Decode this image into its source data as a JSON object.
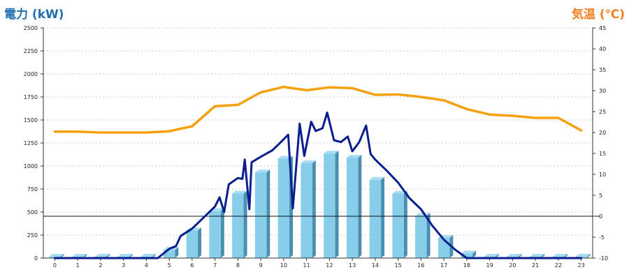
{
  "chart_data": {
    "type": "bar",
    "left_axis_title": "電力 (kW)",
    "right_axis_title": "気温 (℃)",
    "categories": [
      "0",
      "1",
      "2",
      "3",
      "4",
      "5",
      "6",
      "7",
      "8",
      "9",
      "10",
      "11",
      "12",
      "13",
      "14",
      "15",
      "16",
      "17",
      "18",
      "19",
      "20",
      "21",
      "22",
      "23"
    ],
    "ylim_left": [
      0,
      2500
    ],
    "yticks_left": [
      "0",
      "250",
      "500",
      "750",
      "1000",
      "1250",
      "1500",
      "1750",
      "2000",
      "2250",
      "2500"
    ],
    "ylim_right": [
      -10,
      45
    ],
    "yticks_right": [
      "-10",
      "-5",
      "0",
      "5",
      "10",
      "15",
      "20",
      "25",
      "30",
      "35",
      "40",
      "45"
    ],
    "grid": true,
    "bars": {
      "axis": "left",
      "values": [
        15,
        15,
        15,
        15,
        15,
        90,
        300,
        510,
        700,
        930,
        1080,
        1030,
        1135,
        1090,
        850,
        700,
        460,
        220,
        50,
        15,
        15,
        15,
        15,
        15
      ],
      "color": "#87ceeb"
    },
    "power_line": {
      "axis": "left",
      "color": "#0a1f8f",
      "points": [
        [
          0,
          0
        ],
        [
          1,
          0
        ],
        [
          2,
          0
        ],
        [
          3,
          0
        ],
        [
          4,
          0
        ],
        [
          4.5,
          0
        ],
        [
          5,
          100
        ],
        [
          5.3,
          130
        ],
        [
          5.5,
          240
        ],
        [
          6,
          320
        ],
        [
          6.5,
          440
        ],
        [
          7,
          560
        ],
        [
          7.2,
          660
        ],
        [
          7.4,
          500
        ],
        [
          7.6,
          800
        ],
        [
          8,
          870
        ],
        [
          8.2,
          860
        ],
        [
          8.3,
          1070
        ],
        [
          8.5,
          530
        ],
        [
          8.6,
          1040
        ],
        [
          9,
          1100
        ],
        [
          9.5,
          1170
        ],
        [
          9.8,
          1240
        ],
        [
          10.2,
          1340
        ],
        [
          10.4,
          540
        ],
        [
          10.7,
          1460
        ],
        [
          10.9,
          1110
        ],
        [
          11.2,
          1480
        ],
        [
          11.4,
          1380
        ],
        [
          11.7,
          1410
        ],
        [
          11.9,
          1580
        ],
        [
          12.2,
          1280
        ],
        [
          12.5,
          1260
        ],
        [
          12.8,
          1320
        ],
        [
          13,
          1160
        ],
        [
          13.3,
          1260
        ],
        [
          13.6,
          1440
        ],
        [
          13.8,
          1130
        ],
        [
          14,
          1070
        ],
        [
          14.5,
          950
        ],
        [
          15,
          820
        ],
        [
          15.5,
          650
        ],
        [
          16,
          530
        ],
        [
          16.5,
          350
        ],
        [
          17,
          200
        ],
        [
          17.5,
          90
        ],
        [
          18,
          0
        ],
        [
          19,
          0
        ],
        [
          20,
          0
        ],
        [
          21,
          0
        ],
        [
          22,
          0
        ],
        [
          23,
          0
        ]
      ]
    },
    "temperature_line": {
      "axis": "right",
      "color": "#f5a00f",
      "points": [
        [
          0,
          20.2
        ],
        [
          1,
          20.2
        ],
        [
          2,
          20
        ],
        [
          3,
          20
        ],
        [
          4,
          20
        ],
        [
          5,
          20.3
        ],
        [
          6,
          21.5
        ],
        [
          7,
          26.3
        ],
        [
          8,
          26.6
        ],
        [
          9,
          29.6
        ],
        [
          10,
          30.9
        ],
        [
          11,
          30.1
        ],
        [
          12,
          30.8
        ],
        [
          13,
          30.6
        ],
        [
          14,
          29
        ],
        [
          15,
          29.1
        ],
        [
          16,
          28.5
        ],
        [
          17,
          27.7
        ],
        [
          18,
          25.6
        ],
        [
          19,
          24.3
        ],
        [
          20,
          24
        ],
        [
          21,
          23.5
        ],
        [
          22,
          23.5
        ],
        [
          23,
          20.5
        ]
      ]
    }
  }
}
